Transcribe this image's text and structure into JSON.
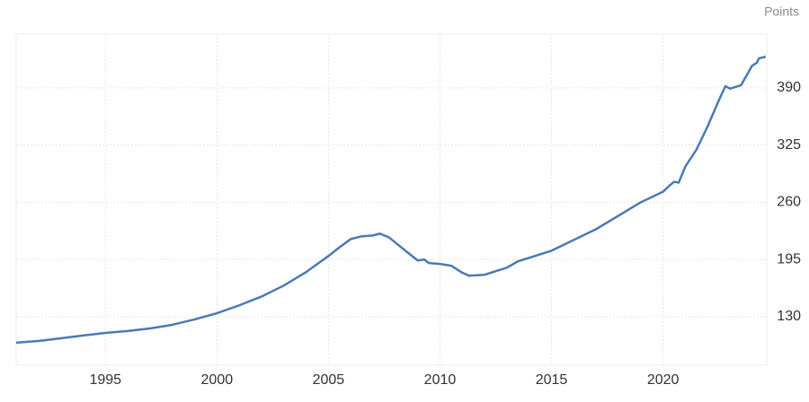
{
  "chart_data": {
    "type": "line",
    "y_unit": "Points",
    "x": [
      1991.0,
      1992,
      1993,
      1994,
      1995,
      1996,
      1997,
      1998,
      1999,
      2000,
      2001,
      2002,
      2003,
      2004,
      2005,
      2005.5,
      2006,
      2006.5,
      2007,
      2007.3,
      2007.7,
      2008,
      2008.5,
      2009,
      2009.3,
      2009.5,
      2010,
      2010.5,
      2011,
      2011.3,
      2012,
      2012.5,
      2013,
      2013.5,
      2014,
      2015,
      2016,
      2017,
      2018,
      2019,
      2020,
      2020.3,
      2020.5,
      2020.7,
      2021,
      2021.5,
      2022,
      2022.5,
      2022.8,
      2023,
      2023.5,
      2024,
      2024.2,
      2024.3,
      2024.6
    ],
    "series": [
      {
        "color": "#4a7ab6",
        "values": [
          100.6,
          102.5,
          105.6,
          108.7,
          111.7,
          113.8,
          116.8,
          120.9,
          127,
          134,
          143,
          153,
          165.5,
          180.8,
          199,
          209,
          218.3,
          221.4,
          222.4,
          224.4,
          220.4,
          214.3,
          204,
          194,
          195,
          191,
          190,
          188,
          180,
          176.7,
          177.7,
          181.8,
          185.8,
          193,
          197,
          205,
          217.3,
          229.5,
          244.7,
          260,
          272,
          279.2,
          283.3,
          282.3,
          300.6,
          319.9,
          346.3,
          375.7,
          392,
          389,
          393,
          415.3,
          418.3,
          423.4,
          425.4
        ]
      }
    ],
    "xlim": [
      1991.0,
      2024.65
    ],
    "xticks": [
      1995,
      2000,
      2005,
      2010,
      2015,
      2020
    ],
    "ylim": [
      75,
      451
    ],
    "yticks": [
      130,
      195,
      260,
      325,
      390
    ],
    "grid": true
  }
}
